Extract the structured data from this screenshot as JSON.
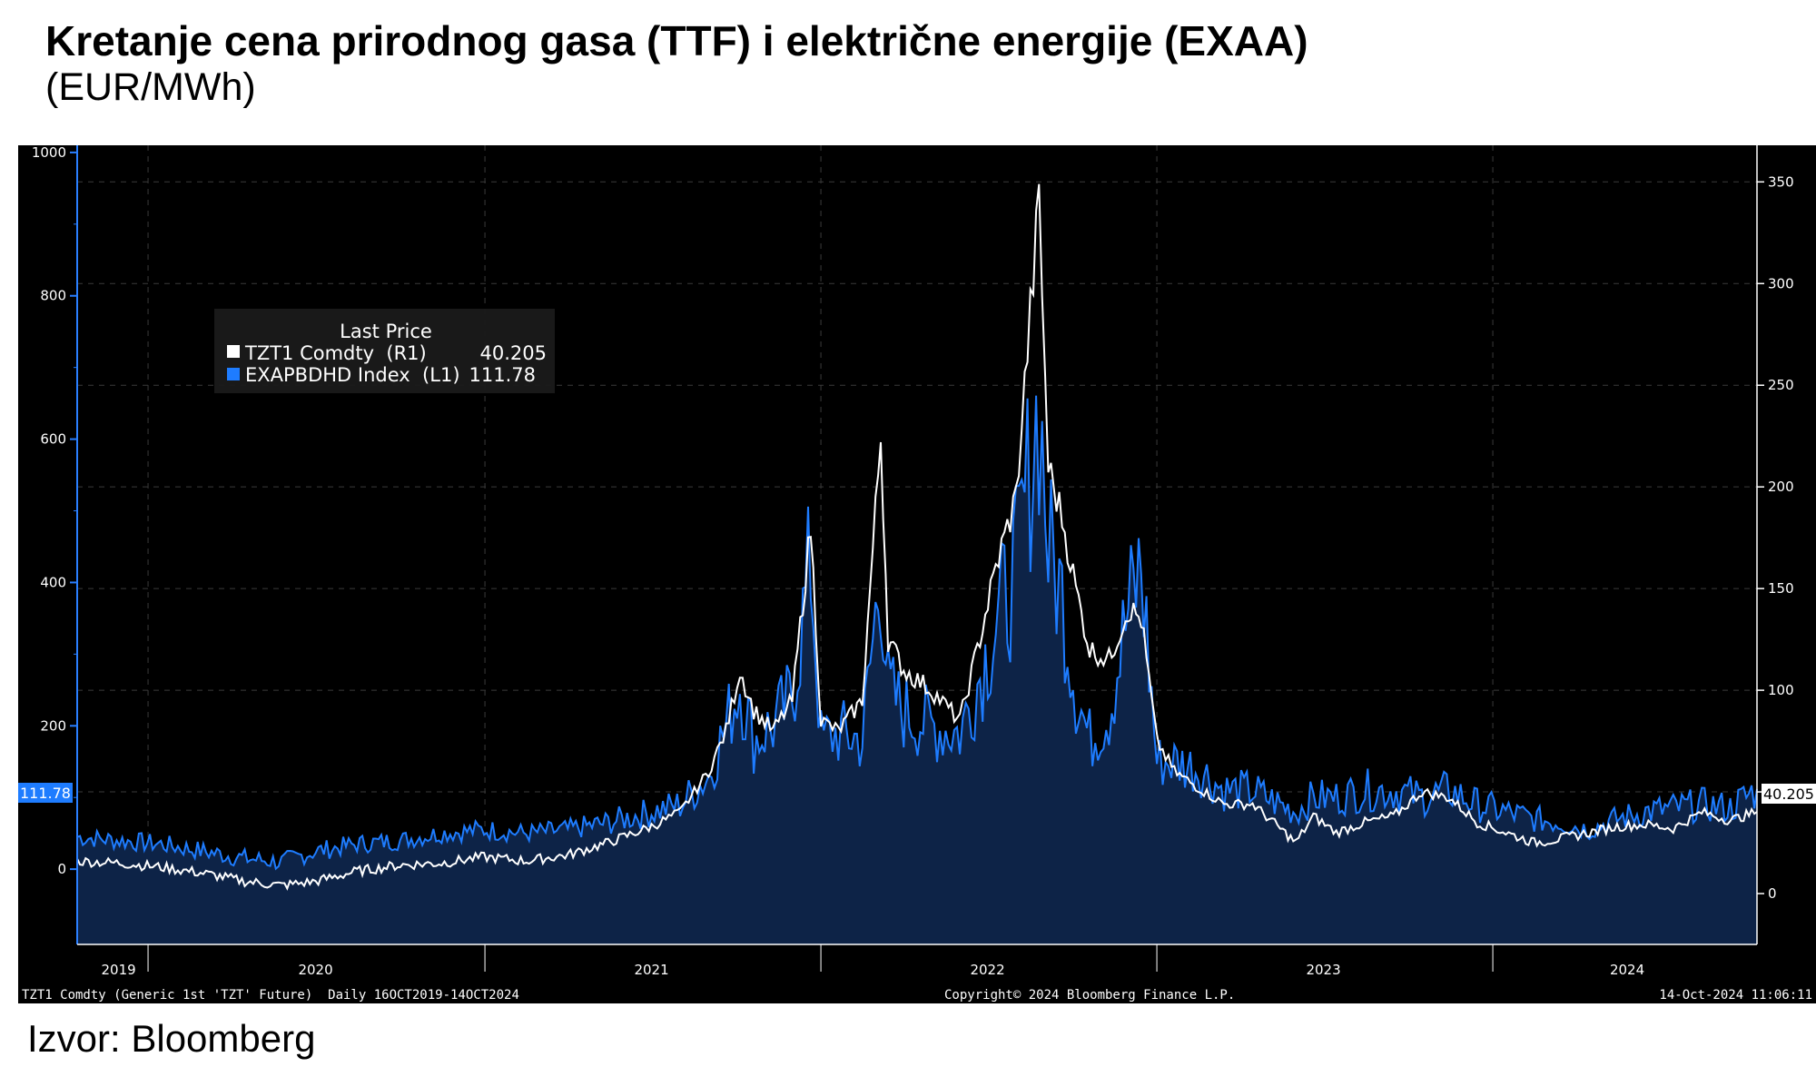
{
  "page": {
    "title": "Kretanje cena prirodnog gasa (TTF) i električne energije (EXAA)",
    "subtitle": "(EUR/MWh)",
    "source": "Izvor: Bloomberg"
  },
  "terminal": {
    "footer_left": "TZT1 Comdty (Generic 1st 'TZT' Future)  Daily 16OCT2019-14OCT2024",
    "footer_center": "Copyright© 2024 Bloomberg Finance L.P.",
    "footer_right": "14-Oct-2024 11:06:11",
    "legend_header": "Last Price",
    "left_last_label": "111.78",
    "right_last_label": "40.205"
  },
  "colors": {
    "background": "#000000",
    "electricity_line": "#1e7cff",
    "electricity_fill": "#0d2347",
    "gas_line": "#ffffff",
    "left_axis": "#2a7fff",
    "axis_text": "#ffffff"
  },
  "chart_data": {
    "type": "line",
    "title": "Kretanje cena prirodnog gasa (TTF) i električne energije (EXAA)",
    "subtitle": "(EUR/MWh)",
    "x_range": [
      "2019-10-16",
      "2024-10-14"
    ],
    "x_tick_labels": [
      "2019",
      "2020",
      "2021",
      "2022",
      "2023",
      "2024"
    ],
    "left_axis": {
      "ylim": [
        -105,
        1010
      ],
      "ticks": [
        0,
        200,
        400,
        600,
        800,
        1000
      ]
    },
    "right_axis": {
      "ylim": [
        -25,
        368
      ],
      "ticks": [
        0,
        50,
        100,
        150,
        200,
        250,
        300,
        350
      ]
    },
    "grid": true,
    "legend_placement": "top-left",
    "series": [
      {
        "name": "TZT1 Comdty  (R1)",
        "axis": "right",
        "last_value": "40.205",
        "color": "#ffffff",
        "points": [
          [
            "2019-10-16",
            16
          ],
          [
            "2019-12-01",
            15
          ],
          [
            "2020-01-15",
            13
          ],
          [
            "2020-03-01",
            10
          ],
          [
            "2020-04-15",
            6
          ],
          [
            "2020-05-25",
            4
          ],
          [
            "2020-07-01",
            6
          ],
          [
            "2020-08-15",
            11
          ],
          [
            "2020-10-01",
            14
          ],
          [
            "2020-11-15",
            15
          ],
          [
            "2020-12-31",
            18
          ],
          [
            "2021-02-15",
            16
          ],
          [
            "2021-04-01",
            19
          ],
          [
            "2021-05-15",
            25
          ],
          [
            "2021-07-01",
            33
          ],
          [
            "2021-08-01",
            40
          ],
          [
            "2021-09-01",
            60
          ],
          [
            "2021-09-20",
            80
          ],
          [
            "2021-10-05",
            110
          ],
          [
            "2021-10-20",
            90
          ],
          [
            "2021-11-10",
            80
          ],
          [
            "2021-12-01",
            95
          ],
          [
            "2021-12-21",
            180
          ],
          [
            "2022-01-01",
            85
          ],
          [
            "2022-01-20",
            80
          ],
          [
            "2022-02-15",
            95
          ],
          [
            "2022-03-07",
            225
          ],
          [
            "2022-03-15",
            125
          ],
          [
            "2022-04-01",
            110
          ],
          [
            "2022-05-01",
            100
          ],
          [
            "2022-06-01",
            85
          ],
          [
            "2022-06-20",
            120
          ],
          [
            "2022-07-10",
            160
          ],
          [
            "2022-08-01",
            195
          ],
          [
            "2022-08-26",
            340
          ],
          [
            "2022-09-05",
            210
          ],
          [
            "2022-09-20",
            185
          ],
          [
            "2022-10-05",
            150
          ],
          [
            "2022-10-20",
            120
          ],
          [
            "2022-11-10",
            115
          ],
          [
            "2022-12-01",
            140
          ],
          [
            "2022-12-15",
            135
          ],
          [
            "2023-01-01",
            75
          ],
          [
            "2023-01-20",
            60
          ],
          [
            "2023-02-15",
            52
          ],
          [
            "2023-03-15",
            44
          ],
          [
            "2023-04-15",
            44
          ],
          [
            "2023-05-15",
            32
          ],
          [
            "2023-06-01",
            25
          ],
          [
            "2023-06-20",
            38
          ],
          [
            "2023-07-15",
            30
          ],
          [
            "2023-08-15",
            35
          ],
          [
            "2023-09-15",
            38
          ],
          [
            "2023-10-16",
            50
          ],
          [
            "2023-11-15",
            47
          ],
          [
            "2023-12-15",
            35
          ],
          [
            "2024-01-15",
            30
          ],
          [
            "2024-02-15",
            25
          ],
          [
            "2024-03-15",
            27
          ],
          [
            "2024-04-15",
            30
          ],
          [
            "2024-05-15",
            33
          ],
          [
            "2024-06-15",
            34
          ],
          [
            "2024-07-15",
            32
          ],
          [
            "2024-08-15",
            40
          ],
          [
            "2024-09-15",
            36
          ],
          [
            "2024-10-14",
            40.205
          ]
        ]
      },
      {
        "name": "EXAPBDHD Index  (L1)",
        "axis": "left",
        "last_value": "111.78",
        "color": "#1e7cff",
        "points": [
          [
            "2019-10-16",
            45
          ],
          [
            "2019-12-01",
            40
          ],
          [
            "2020-01-15",
            35
          ],
          [
            "2020-03-01",
            25
          ],
          [
            "2020-04-15",
            15
          ],
          [
            "2020-05-25",
            10
          ],
          [
            "2020-07-01",
            25
          ],
          [
            "2020-08-15",
            35
          ],
          [
            "2020-10-01",
            40
          ],
          [
            "2020-11-15",
            50
          ],
          [
            "2020-12-31",
            55
          ],
          [
            "2021-02-15",
            50
          ],
          [
            "2021-04-01",
            55
          ],
          [
            "2021-05-15",
            65
          ],
          [
            "2021-07-01",
            80
          ],
          [
            "2021-08-01",
            90
          ],
          [
            "2021-09-01",
            130
          ],
          [
            "2021-09-20",
            200
          ],
          [
            "2021-10-05",
            260
          ],
          [
            "2021-10-20",
            180
          ],
          [
            "2021-11-10",
            200
          ],
          [
            "2021-12-01",
            240
          ],
          [
            "2021-12-21",
            430
          ],
          [
            "2022-01-01",
            180
          ],
          [
            "2022-01-20",
            190
          ],
          [
            "2022-02-15",
            180
          ],
          [
            "2022-03-07",
            420
          ],
          [
            "2022-03-15",
            250
          ],
          [
            "2022-04-01",
            220
          ],
          [
            "2022-05-01",
            200
          ],
          [
            "2022-06-01",
            190
          ],
          [
            "2022-06-20",
            260
          ],
          [
            "2022-07-10",
            340
          ],
          [
            "2022-08-01",
            420
          ],
          [
            "2022-08-26",
            650
          ],
          [
            "2022-09-05",
            450
          ],
          [
            "2022-09-20",
            380
          ],
          [
            "2022-10-05",
            250
          ],
          [
            "2022-10-20",
            180
          ],
          [
            "2022-11-10",
            220
          ],
          [
            "2022-12-01",
            360
          ],
          [
            "2022-12-15",
            420
          ],
          [
            "2023-01-01",
            150
          ],
          [
            "2023-01-20",
            150
          ],
          [
            "2023-02-15",
            140
          ],
          [
            "2023-03-15",
            110
          ],
          [
            "2023-04-15",
            110
          ],
          [
            "2023-05-15",
            90
          ],
          [
            "2023-06-01",
            80
          ],
          [
            "2023-06-20",
            100
          ],
          [
            "2023-07-15",
            100
          ],
          [
            "2023-08-15",
            110
          ],
          [
            "2023-09-15",
            110
          ],
          [
            "2023-10-16",
            100
          ],
          [
            "2023-11-15",
            110
          ],
          [
            "2023-12-15",
            90
          ],
          [
            "2024-01-15",
            80
          ],
          [
            "2024-02-15",
            70
          ],
          [
            "2024-03-15",
            65
          ],
          [
            "2024-04-15",
            55
          ],
          [
            "2024-05-15",
            70
          ],
          [
            "2024-06-15",
            80
          ],
          [
            "2024-07-15",
            85
          ],
          [
            "2024-08-15",
            90
          ],
          [
            "2024-09-15",
            85
          ],
          [
            "2024-10-14",
            111.78
          ]
        ]
      }
    ]
  }
}
